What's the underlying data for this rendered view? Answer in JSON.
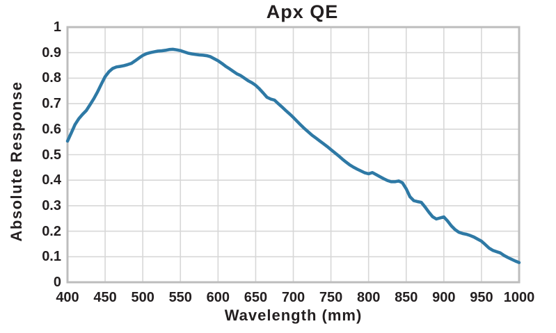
{
  "chart_data": {
    "type": "line",
    "title": "Apx QE",
    "xlabel": "Wavelength (mm)",
    "ylabel": "Absolute Response",
    "xlim": [
      400,
      1000
    ],
    "ylim": [
      0,
      1
    ],
    "x_ticks": [
      400,
      450,
      500,
      550,
      600,
      650,
      700,
      750,
      800,
      850,
      900,
      950,
      1000
    ],
    "y_ticks": [
      0,
      0.1,
      0.2,
      0.3,
      0.4,
      0.5,
      0.6,
      0.7,
      0.8,
      0.9,
      1
    ],
    "grid": true,
    "legend": "none",
    "colors": {
      "line": "#2e79a5",
      "grid": "#d7d7d7",
      "frame": "#bdbdbd",
      "text": "#231f20",
      "background": "#ffffff"
    },
    "series": [
      {
        "name": "Apx QE",
        "x": [
          400,
          405,
          410,
          415,
          420,
          425,
          430,
          435,
          440,
          445,
          450,
          455,
          460,
          465,
          470,
          475,
          480,
          485,
          490,
          495,
          500,
          505,
          510,
          515,
          520,
          525,
          530,
          535,
          540,
          545,
          550,
          555,
          560,
          565,
          570,
          575,
          580,
          585,
          590,
          595,
          600,
          605,
          610,
          615,
          620,
          625,
          630,
          635,
          640,
          645,
          650,
          655,
          660,
          665,
          670,
          675,
          680,
          685,
          690,
          695,
          700,
          705,
          710,
          715,
          720,
          725,
          730,
          735,
          740,
          745,
          750,
          755,
          760,
          765,
          770,
          775,
          780,
          785,
          790,
          795,
          800,
          805,
          810,
          815,
          820,
          825,
          830,
          835,
          840,
          845,
          850,
          855,
          860,
          865,
          870,
          875,
          880,
          885,
          890,
          895,
          900,
          905,
          910,
          915,
          920,
          925,
          930,
          935,
          940,
          945,
          950,
          955,
          960,
          965,
          970,
          975,
          980,
          985,
          990,
          995,
          1000
        ],
        "y": [
          0.553,
          0.585,
          0.618,
          0.641,
          0.658,
          0.673,
          0.696,
          0.72,
          0.747,
          0.777,
          0.806,
          0.825,
          0.838,
          0.844,
          0.846,
          0.849,
          0.853,
          0.858,
          0.868,
          0.879,
          0.889,
          0.896,
          0.9,
          0.903,
          0.906,
          0.907,
          0.909,
          0.912,
          0.913,
          0.911,
          0.908,
          0.903,
          0.898,
          0.895,
          0.893,
          0.891,
          0.89,
          0.888,
          0.884,
          0.876,
          0.868,
          0.858,
          0.847,
          0.837,
          0.827,
          0.817,
          0.81,
          0.8,
          0.79,
          0.782,
          0.772,
          0.758,
          0.742,
          0.725,
          0.718,
          0.714,
          0.7,
          0.687,
          0.673,
          0.66,
          0.646,
          0.631,
          0.616,
          0.602,
          0.589,
          0.576,
          0.565,
          0.554,
          0.543,
          0.532,
          0.52,
          0.508,
          0.496,
          0.483,
          0.471,
          0.46,
          0.451,
          0.443,
          0.436,
          0.429,
          0.425,
          0.43,
          0.422,
          0.414,
          0.406,
          0.399,
          0.394,
          0.394,
          0.397,
          0.39,
          0.366,
          0.335,
          0.32,
          0.316,
          0.313,
          0.295,
          0.275,
          0.257,
          0.248,
          0.252,
          0.256,
          0.24,
          0.221,
          0.206,
          0.196,
          0.191,
          0.188,
          0.183,
          0.177,
          0.169,
          0.161,
          0.148,
          0.134,
          0.125,
          0.12,
          0.115,
          0.105,
          0.097,
          0.09,
          0.083,
          0.077
        ]
      }
    ]
  }
}
